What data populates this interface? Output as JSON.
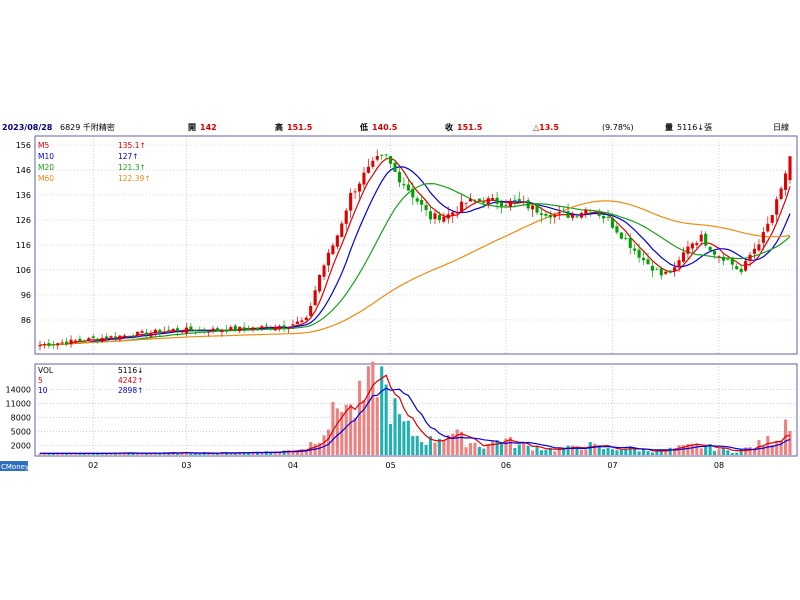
{
  "header": {
    "date": "2023/08/28",
    "stock": "6829 千附精密",
    "open_label": "開",
    "open_value": "142",
    "high_label": "高",
    "high_value": "151.5",
    "low_label": "低",
    "low_value": "140.5",
    "close_label": "收",
    "close_value": "151.5",
    "change": "△13.5",
    "change_pct": "(9.78%)",
    "volume_label": "量",
    "volume_value": "5116↓張",
    "period": "日線"
  },
  "price_legend": [
    {
      "label": "M5",
      "value": "135.1↑",
      "color": "#e00000"
    },
    {
      "label": "M10",
      "value": "127↑",
      "color": "#0000dd"
    },
    {
      "label": "M20",
      "value": "121.3↑",
      "color": "#18a018"
    },
    {
      "label": "M60",
      "value": "122.39↑",
      "color": "#f08a10"
    }
  ],
  "volume_legend": [
    {
      "label": "VOL",
      "value": "5116↓",
      "color": "#000000"
    },
    {
      "label": "5",
      "value": "4242↑",
      "color": "#e00000"
    },
    {
      "label": "10",
      "value": "2898↑",
      "color": "#0000dd"
    }
  ],
  "watermark": "CMoney",
  "month_labels": [
    "02",
    "03",
    "04",
    "05",
    "06",
    "07",
    "08"
  ],
  "colors": {
    "up": "#e00000",
    "down": "#00a000",
    "vol_up": "#f08080",
    "vol_down": "#20b0b0",
    "border": "#6060a0",
    "grid": "#b0b0c8"
  },
  "chart_data": [
    {
      "type": "candlestick",
      "title": "6829 千附精密 日線",
      "y_ticks": [
        86,
        96,
        106,
        116,
        126,
        136,
        146,
        156
      ],
      "ylim": [
        74,
        158
      ],
      "months": [
        "02",
        "03",
        "04",
        "05",
        "06",
        "07",
        "08"
      ],
      "series": [
        {
          "name": "M5",
          "last": 135.1
        },
        {
          "name": "M10",
          "last": 127
        },
        {
          "name": "M20",
          "last": 121.3
        },
        {
          "name": "M60",
          "last": 122.39
        }
      ],
      "close_keypoints": [
        [
          0,
          76
        ],
        [
          10,
          78
        ],
        [
          20,
          80
        ],
        [
          30,
          82
        ],
        [
          40,
          82
        ],
        [
          50,
          83
        ],
        [
          56,
          84
        ],
        [
          60,
          86
        ],
        [
          63,
          104
        ],
        [
          67,
          120
        ],
        [
          70,
          136
        ],
        [
          73,
          144
        ],
        [
          76,
          150
        ],
        [
          78,
          151
        ],
        [
          80,
          145
        ],
        [
          84,
          136
        ],
        [
          88,
          127
        ],
        [
          92,
          128
        ],
        [
          96,
          133
        ],
        [
          100,
          134
        ],
        [
          104,
          133
        ],
        [
          108,
          133
        ],
        [
          112,
          130
        ],
        [
          116,
          128
        ],
        [
          120,
          128
        ],
        [
          124,
          131
        ],
        [
          128,
          126
        ],
        [
          132,
          118
        ],
        [
          136,
          110
        ],
        [
          140,
          104
        ],
        [
          143,
          106
        ],
        [
          146,
          116
        ],
        [
          149,
          119
        ],
        [
          152,
          113
        ],
        [
          155,
          110
        ],
        [
          158,
          105
        ],
        [
          160,
          112
        ],
        [
          163,
          120
        ],
        [
          165,
          128
        ],
        [
          167,
          138
        ],
        [
          169,
          151.5
        ]
      ],
      "last_bar": {
        "open": 142,
        "high": 151.5,
        "low": 140.5,
        "close": 151.5
      }
    },
    {
      "type": "bar",
      "title": "VOL",
      "y_ticks": [
        2000,
        5000,
        8000,
        11000,
        14000
      ],
      "ylim": [
        0,
        19000
      ],
      "volume_keypoints": [
        [
          0,
          300
        ],
        [
          20,
          400
        ],
        [
          40,
          450
        ],
        [
          54,
          700
        ],
        [
          60,
          1500
        ],
        [
          63,
          4500
        ],
        [
          66,
          8000
        ],
        [
          68,
          13000
        ],
        [
          70,
          9000
        ],
        [
          73,
          12000
        ],
        [
          75,
          14500
        ],
        [
          76,
          18800
        ],
        [
          78,
          13000
        ],
        [
          80,
          9000
        ],
        [
          82,
          6000
        ],
        [
          85,
          4000
        ],
        [
          88,
          3000
        ],
        [
          92,
          5000
        ],
        [
          96,
          3000
        ],
        [
          100,
          2000
        ],
        [
          104,
          3500
        ],
        [
          108,
          2000
        ],
        [
          112,
          1600
        ],
        [
          116,
          1200
        ],
        [
          120,
          1500
        ],
        [
          124,
          2000
        ],
        [
          128,
          1200
        ],
        [
          132,
          1500
        ],
        [
          136,
          1000
        ],
        [
          140,
          900
        ],
        [
          144,
          1500
        ],
        [
          148,
          2000
        ],
        [
          152,
          1500
        ],
        [
          156,
          700
        ],
        [
          160,
          1500
        ],
        [
          164,
          3000
        ],
        [
          167,
          4500
        ],
        [
          168,
          7500
        ],
        [
          169,
          5116
        ]
      ],
      "series": [
        {
          "name": "5",
          "last": 4242
        },
        {
          "name": "10",
          "last": 2898
        }
      ]
    }
  ]
}
